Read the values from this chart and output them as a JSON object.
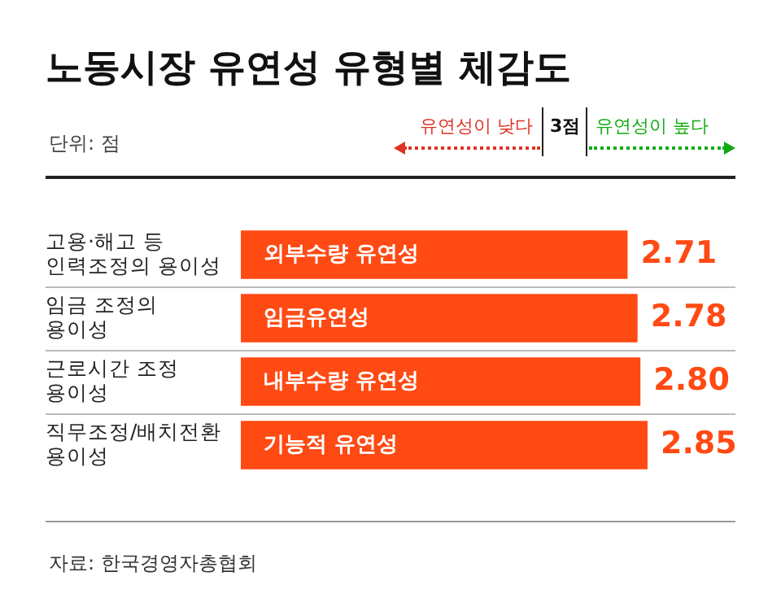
{
  "chart_data": {
    "type": "bar",
    "orientation": "horizontal",
    "title": "노동시장 유연성 유형별 체감도",
    "categories": [
      "고용·해고 등\n인력조정의 용이성",
      "임금 조정의\n용이성",
      "근로시간 조정\n용이성",
      "직무조정/배치전환\n용이성"
    ],
    "values": [
      2.71,
      2.78,
      2.8,
      2.85
    ],
    "color": "#ff4a13",
    "value_labels": [
      "2.71",
      "2.78",
      "2.80",
      "2.85"
    ],
    "xlim": [
      0,
      3.5
    ],
    "tick_labels": "y",
    "annotations": [
      {
        "text": "외부수량 유연성",
        "y": "고용·해고 등\n인력조정의 용이성"
      },
      {
        "text": "임금유연성",
        "y": "임금 조정의\n용이성"
      },
      {
        "text": "내부수량 유연성",
        "y": "근로시간 조정\n용이성"
      },
      {
        "text": "기능적 유연성",
        "y": "직무조정/배치전환\n용이성"
      },
      "단위: 점",
      "유연성이 낮다",
      "3점",
      "유연성이 높다",
      "자료: 한국경영자총협회"
    ]
  }
}
